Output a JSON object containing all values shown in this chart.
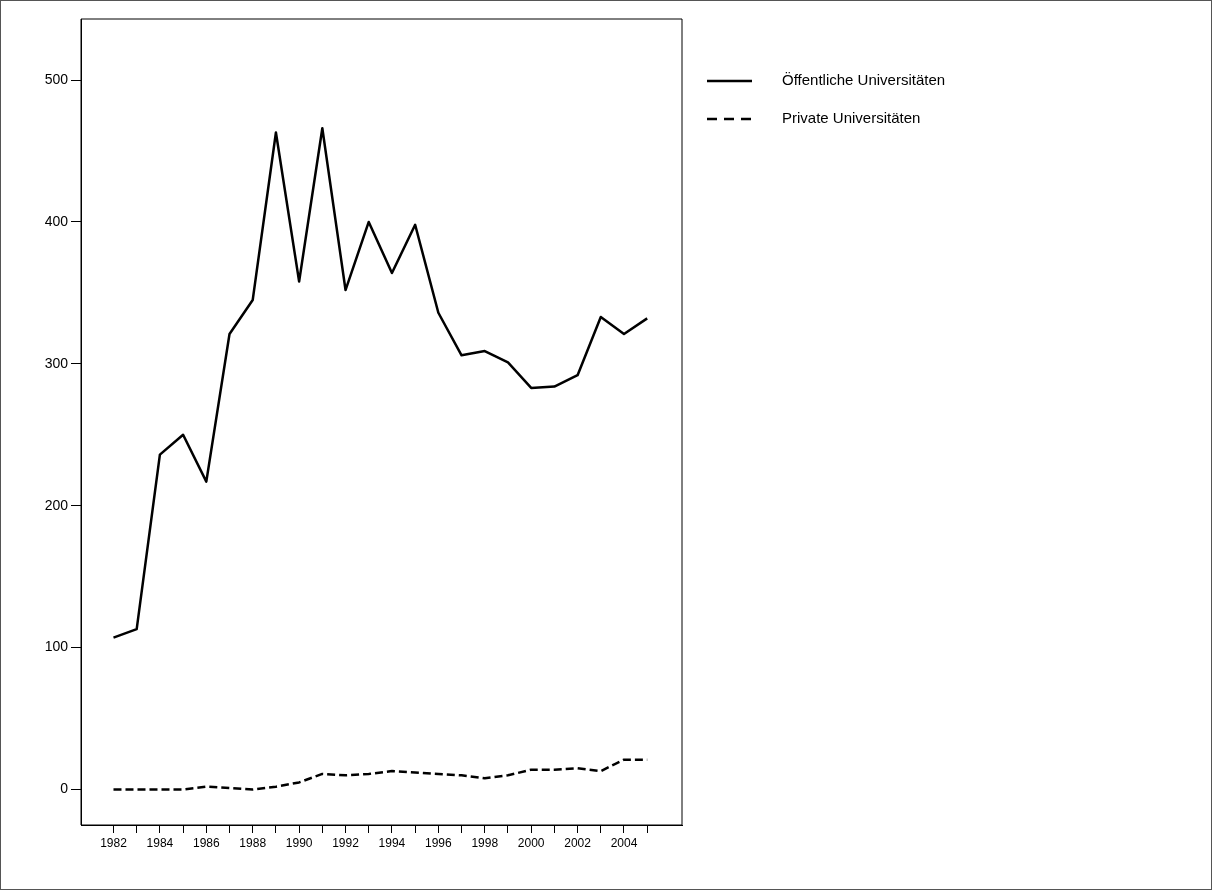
{
  "chart_data": {
    "type": "line",
    "x": [
      1982,
      1983,
      1984,
      1985,
      1986,
      1987,
      1988,
      1989,
      1990,
      1991,
      1992,
      1993,
      1994,
      1995,
      1996,
      1997,
      1998,
      1999,
      2000,
      2001,
      2002,
      2003,
      2004,
      2005
    ],
    "series": [
      {
        "name": "Öffentliche Universitäten",
        "color": "#000000",
        "line_style": "solid",
        "values": [
          107,
          113,
          236,
          250,
          217,
          321,
          345,
          463,
          358,
          466,
          352,
          400,
          364,
          398,
          336,
          306,
          309,
          301,
          283,
          284,
          292,
          333,
          321,
          332
        ]
      },
      {
        "name": "Private Universitäten",
        "color": "#000000",
        "line_style": "dashed",
        "values": [
          0,
          0,
          0,
          0,
          2,
          1,
          0,
          2,
          5,
          11,
          10,
          11,
          13,
          12,
          11,
          10,
          8,
          10,
          14,
          14,
          15,
          13,
          21,
          21
        ]
      }
    ],
    "xlim": [
      1980.6,
      2006.5
    ],
    "xticks": [
      1982,
      {
        "value": 1983,
        "label": null
      },
      1984,
      {
        "value": 1985,
        "label": null
      },
      1986,
      {
        "value": 1987,
        "label": null
      },
      1988,
      {
        "value": 1989,
        "label": null
      },
      1990,
      {
        "value": 1991,
        "label": null
      },
      1992,
      {
        "value": 1993,
        "label": null
      },
      1994,
      {
        "value": 1995,
        "label": null
      },
      1996,
      {
        "value": 1997,
        "label": null
      },
      1998,
      {
        "value": 1999,
        "label": null
      },
      2000,
      {
        "value": 2001,
        "label": null
      },
      2002,
      {
        "value": 2003,
        "label": null
      },
      2004,
      {
        "value": 2005,
        "label": null
      }
    ],
    "ylim": [
      -25,
      543
    ],
    "yticks": [
      0,
      100,
      200,
      300,
      400,
      500
    ],
    "grid": false,
    "legend": "top right",
    "marker": "none"
  }
}
